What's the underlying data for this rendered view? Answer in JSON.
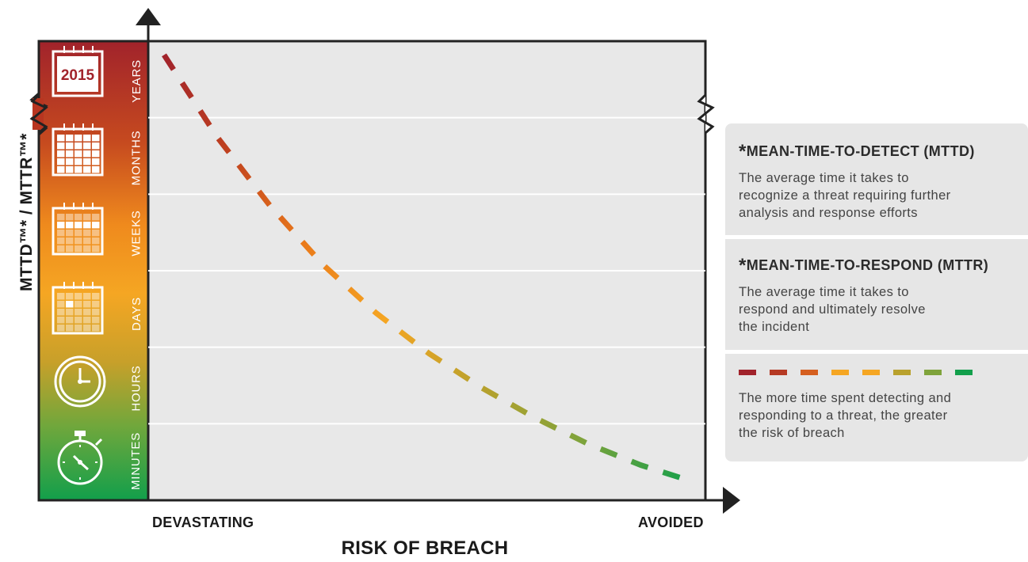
{
  "chart_data": {
    "type": "line",
    "title": "",
    "xlabel": "RISK OF BREACH",
    "ylabel": "MTTD™* / MTTR™*",
    "x_ends": [
      "DEVASTATING",
      "AVOIDED"
    ],
    "y_categories": [
      "MINUTES",
      "HOURS",
      "DAYS",
      "WEEKS",
      "MONTHS",
      "YEARS"
    ],
    "calendar_year": "2015",
    "series": [
      {
        "x": [
          0,
          0.1,
          0.2,
          0.3,
          0.4,
          0.5,
          0.6,
          0.7,
          0.8,
          0.9,
          1.0
        ],
        "y": [
          5.82,
          4.75,
          3.85,
          3.08,
          2.45,
          1.92,
          1.47,
          1.08,
          0.74,
          0.46,
          0.24
        ]
      }
    ],
    "gradient_colors": [
      "#a1232b",
      "#c0421f",
      "#ea7a1a",
      "#f5a623",
      "#b9a12d",
      "#7fa33b",
      "#129f4b"
    ],
    "grid": true
  },
  "panel": {
    "mttd_title": "MEAN-TIME-TO-DETECT (MTTD)",
    "mttd_body": [
      "The average time it takes to",
      "recognize a threat requiring further",
      "analysis and response efforts"
    ],
    "mttr_title": "MEAN-TIME-TO-RESPOND (MTTR)",
    "mttr_body": [
      "The average time it takes to",
      "respond and ultimately resolve",
      "the incident"
    ],
    "legend_colors": [
      "#a1232b",
      "#b63a24",
      "#d55f1f",
      "#f5a623",
      "#f5a623",
      "#b9a12d",
      "#7fa33b",
      "#129f4b"
    ],
    "legend_body": [
      "The more time spent detecting and",
      "responding to a threat, the greater",
      "the risk of breach"
    ],
    "asterisk": "*"
  }
}
